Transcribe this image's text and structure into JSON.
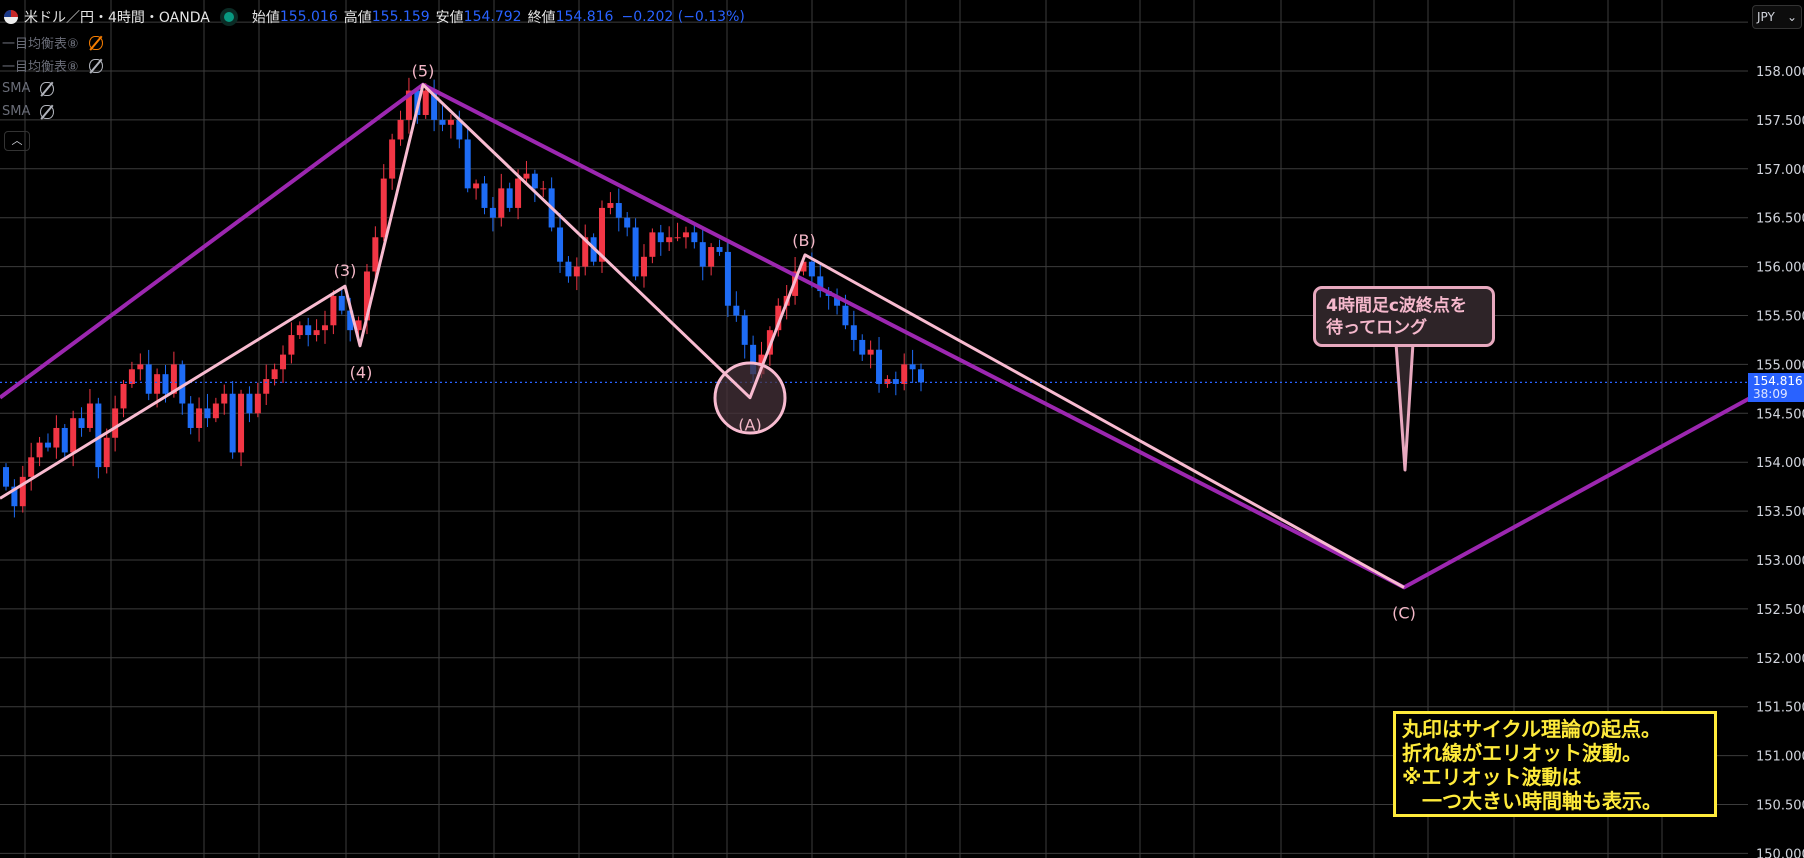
{
  "header": {
    "symbol_title": "米ドル／円・4時間・OANDA",
    "open_label": "始値",
    "open": "155.016",
    "high_label": "高値",
    "high": "155.159",
    "low_label": "安値",
    "low": "154.792",
    "close_label": "終値",
    "close": "154.816",
    "change": "−0.202 (−0.13%)"
  },
  "legend": [
    {
      "label": "一目均衡表⑧",
      "icon": "eye-off-icon",
      "color": "#f57c00"
    },
    {
      "label": "一目均衡表⑧",
      "icon": "eye-off-icon"
    },
    {
      "label": "SMA",
      "icon": "eye-off-icon"
    },
    {
      "label": "SMA",
      "icon": "eye-off-icon"
    }
  ],
  "currency_button": "JPY",
  "last_price": {
    "value": "154.816",
    "countdown": "38:09"
  },
  "callout": {
    "line1": "4時間足c波終点を",
    "line2": "待ってロング"
  },
  "note_box": "丸印はサイクル理論の起点。\n折れ線がエリオット波動。\n※エリオット波動は\n　一つ大きい時間軸も表示。",
  "colors": {
    "up": "#f23645",
    "down": "#1e6cf5",
    "wave_small": "#f8bbd0",
    "wave_large": "#9c27b0",
    "last_price": "#2962ff"
  },
  "chart_data": {
    "type": "candlestick",
    "ylim": [
      150.0,
      158.5
    ],
    "y_ticks": [
      "158.000",
      "157.500",
      "157.000",
      "156.500",
      "156.000",
      "155.500",
      "155.000",
      "154.500",
      "154.000",
      "153.500",
      "153.000",
      "152.500",
      "152.000",
      "151.500",
      "151.000",
      "150.500",
      "150.000"
    ],
    "grid": true,
    "first_open": 153.95,
    "closes": [
      153.75,
      153.55,
      153.85,
      154.05,
      154.2,
      154.15,
      154.35,
      154.1,
      154.45,
      154.35,
      154.6,
      153.95,
      154.25,
      154.55,
      154.8,
      154.95,
      155.0,
      154.7,
      154.9,
      154.7,
      155.0,
      154.6,
      154.35,
      154.55,
      154.45,
      154.6,
      154.7,
      154.1,
      154.7,
      154.5,
      154.7,
      154.85,
      154.95,
      155.1,
      155.3,
      155.4,
      155.3,
      155.35,
      155.4,
      155.7,
      155.55,
      155.35,
      155.45,
      155.95,
      156.3,
      156.9,
      157.3,
      157.5,
      157.8,
      157.55,
      157.8,
      157.5,
      157.45,
      157.5,
      157.3,
      156.8,
      156.85,
      156.6,
      156.5,
      156.8,
      156.6,
      156.9,
      156.95,
      156.8,
      156.8,
      156.4,
      156.05,
      155.9,
      156.0,
      156.3,
      156.05,
      156.6,
      156.65,
      156.5,
      156.4,
      155.9,
      156.1,
      156.35,
      156.25,
      156.3,
      156.3,
      156.35,
      156.25,
      156.0,
      156.2,
      156.15,
      155.6,
      155.5,
      155.2,
      154.9,
      155.1,
      155.35,
      155.6,
      155.7,
      155.95,
      156.05,
      155.9,
      155.75,
      155.7,
      155.6,
      155.4,
      155.25,
      155.1,
      155.15,
      154.8,
      154.85,
      154.8,
      155.0,
      154.95,
      154.816
    ],
    "last_price": 154.816,
    "wave_labels": [
      "(3)",
      "(4)",
      "(5)",
      "(A)",
      "(B)",
      "(C)"
    ],
    "wave_prices": {
      "(3)": 155.8,
      "(4)": 155.19,
      "(5)": 157.86,
      "(A)": 154.66,
      "(B)": 156.12,
      "(C)": 152.72
    }
  }
}
